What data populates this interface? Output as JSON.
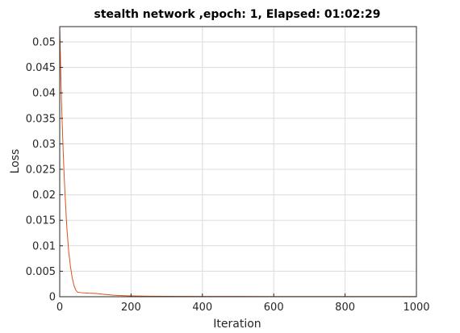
{
  "chart_data": {
    "type": "line",
    "title": "stealth network ,epoch: 1, Elapsed: 01:02:29",
    "xlabel": "Iteration",
    "ylabel": "Loss",
    "xlim": [
      0,
      1000
    ],
    "ylim": [
      0,
      0.053
    ],
    "xticks": [
      0,
      200,
      400,
      600,
      800,
      1000
    ],
    "xtick_labels": [
      "0",
      "200",
      "400",
      "600",
      "800",
      "1000"
    ],
    "yticks": [
      0,
      0.005,
      0.01,
      0.015,
      0.02,
      0.025,
      0.03,
      0.035,
      0.04,
      0.045,
      0.05
    ],
    "ytick_labels": [
      "0",
      "0.005",
      "0.01",
      "0.015",
      "0.02",
      "0.025",
      "0.03",
      "0.035",
      "0.04",
      "0.045",
      "0.05"
    ],
    "grid": true,
    "color": "#d95319",
    "series": [
      {
        "x": [
          0,
          2,
          4,
          6,
          8,
          10,
          12,
          15,
          18,
          20,
          25,
          30,
          35,
          40,
          45,
          50,
          60,
          80,
          100,
          120,
          150,
          180,
          200,
          250,
          300,
          400,
          500,
          600,
          700,
          800,
          900,
          1000
        ],
        "y": [
          0.053,
          0.047,
          0.041,
          0.036,
          0.032,
          0.028,
          0.0245,
          0.02,
          0.016,
          0.0135,
          0.009,
          0.006,
          0.0037,
          0.0022,
          0.0013,
          0.0009,
          0.0008,
          0.0007,
          0.00065,
          0.0005,
          0.0003,
          0.0002,
          0.00015,
          0.0001,
          8e-05,
          6e-05,
          5e-05,
          4e-05,
          4e-05,
          3e-05,
          3e-05,
          3e-05
        ]
      }
    ]
  }
}
